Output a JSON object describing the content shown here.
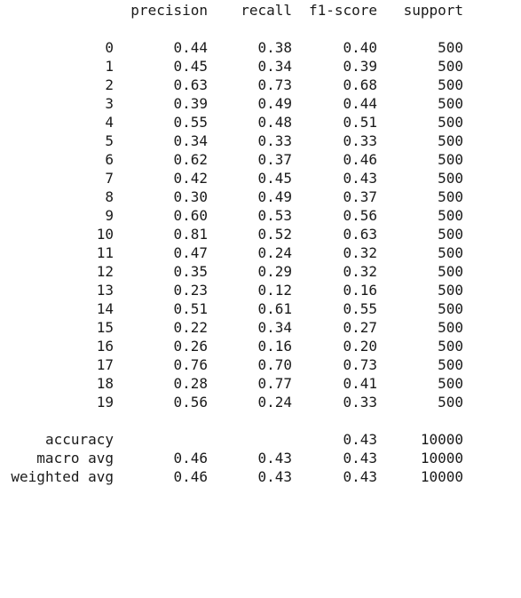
{
  "header": {
    "precision": "precision",
    "recall": "recall",
    "f1": "f1-score",
    "support": "support"
  },
  "classes": [
    {
      "label": "0",
      "precision": "0.44",
      "recall": "0.38",
      "f1": "0.40",
      "support": "500"
    },
    {
      "label": "1",
      "precision": "0.45",
      "recall": "0.34",
      "f1": "0.39",
      "support": "500"
    },
    {
      "label": "2",
      "precision": "0.63",
      "recall": "0.73",
      "f1": "0.68",
      "support": "500"
    },
    {
      "label": "3",
      "precision": "0.39",
      "recall": "0.49",
      "f1": "0.44",
      "support": "500"
    },
    {
      "label": "4",
      "precision": "0.55",
      "recall": "0.48",
      "f1": "0.51",
      "support": "500"
    },
    {
      "label": "5",
      "precision": "0.34",
      "recall": "0.33",
      "f1": "0.33",
      "support": "500"
    },
    {
      "label": "6",
      "precision": "0.62",
      "recall": "0.37",
      "f1": "0.46",
      "support": "500"
    },
    {
      "label": "7",
      "precision": "0.42",
      "recall": "0.45",
      "f1": "0.43",
      "support": "500"
    },
    {
      "label": "8",
      "precision": "0.30",
      "recall": "0.49",
      "f1": "0.37",
      "support": "500"
    },
    {
      "label": "9",
      "precision": "0.60",
      "recall": "0.53",
      "f1": "0.56",
      "support": "500"
    },
    {
      "label": "10",
      "precision": "0.81",
      "recall": "0.52",
      "f1": "0.63",
      "support": "500"
    },
    {
      "label": "11",
      "precision": "0.47",
      "recall": "0.24",
      "f1": "0.32",
      "support": "500"
    },
    {
      "label": "12",
      "precision": "0.35",
      "recall": "0.29",
      "f1": "0.32",
      "support": "500"
    },
    {
      "label": "13",
      "precision": "0.23",
      "recall": "0.12",
      "f1": "0.16",
      "support": "500"
    },
    {
      "label": "14",
      "precision": "0.51",
      "recall": "0.61",
      "f1": "0.55",
      "support": "500"
    },
    {
      "label": "15",
      "precision": "0.22",
      "recall": "0.34",
      "f1": "0.27",
      "support": "500"
    },
    {
      "label": "16",
      "precision": "0.26",
      "recall": "0.16",
      "f1": "0.20",
      "support": "500"
    },
    {
      "label": "17",
      "precision": "0.76",
      "recall": "0.70",
      "f1": "0.73",
      "support": "500"
    },
    {
      "label": "18",
      "precision": "0.28",
      "recall": "0.77",
      "f1": "0.41",
      "support": "500"
    },
    {
      "label": "19",
      "precision": "0.56",
      "recall": "0.24",
      "f1": "0.33",
      "support": "500"
    }
  ],
  "summary": [
    {
      "label": "accuracy",
      "precision": "",
      "recall": "",
      "f1": "0.43",
      "support": "10000"
    },
    {
      "label": "macro avg",
      "precision": "0.46",
      "recall": "0.43",
      "f1": "0.43",
      "support": "10000"
    },
    {
      "label": "weighted avg",
      "precision": "0.46",
      "recall": "0.43",
      "f1": "0.43",
      "support": "10000"
    }
  ]
}
